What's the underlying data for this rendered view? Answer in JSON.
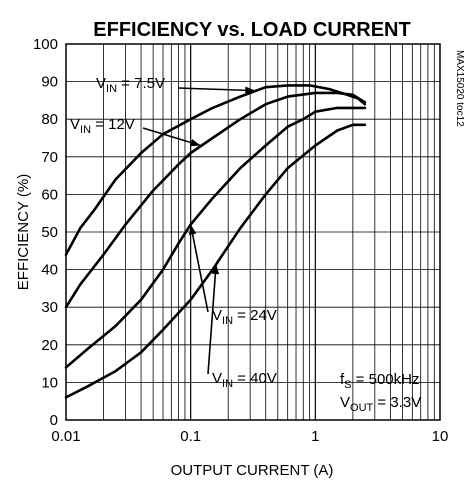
{
  "chart_data": {
    "type": "line",
    "title": "EFFICIENCY vs. LOAD CURRENT",
    "xlabel": "OUTPUT CURRENT (A)",
    "ylabel": "EFFICIENCY (%)",
    "x_scale": "log",
    "xlim": [
      0.01,
      10
    ],
    "ylim": [
      0,
      100
    ],
    "grid": true,
    "figure_code": "MAX15020 toc12",
    "x_ticks": [
      "0.01",
      "0.1",
      "1",
      "10"
    ],
    "y_ticks": [
      "0",
      "10",
      "20",
      "30",
      "40",
      "50",
      "60",
      "70",
      "80",
      "90",
      "100"
    ],
    "series": [
      {
        "name": "VIN = 7.5V",
        "label_main": "V",
        "label_sub": "IN",
        "label_rest": " = 7.5V",
        "x": [
          0.01,
          0.013,
          0.017,
          0.025,
          0.04,
          0.06,
          0.1,
          0.15,
          0.25,
          0.4,
          0.6,
          0.9,
          1.3,
          1.8,
          2.2,
          2.5
        ],
        "y": [
          44,
          51,
          56,
          64,
          71,
          76,
          80,
          83,
          86,
          88.5,
          89,
          89,
          88,
          86.5,
          85.5,
          84
        ]
      },
      {
        "name": "VIN = 12V",
        "label_main": "V",
        "label_sub": "IN",
        "label_rest": " = 12V",
        "x": [
          0.01,
          0.013,
          0.02,
          0.03,
          0.05,
          0.08,
          0.1,
          0.15,
          0.25,
          0.4,
          0.6,
          1.0,
          1.5,
          2.0,
          2.5
        ],
        "y": [
          30,
          36,
          44,
          52,
          61,
          68,
          71,
          75,
          80,
          84,
          86,
          87,
          87,
          86.5,
          84.5
        ]
      },
      {
        "name": "VIN = 24V",
        "label_main": "V",
        "label_sub": "IN",
        "label_rest": " = 24V",
        "x": [
          0.01,
          0.015,
          0.025,
          0.04,
          0.06,
          0.08,
          0.1,
          0.15,
          0.25,
          0.4,
          0.6,
          0.8,
          1.0,
          1.5,
          2.0,
          2.5
        ],
        "y": [
          14,
          19,
          25,
          32,
          40,
          47,
          52,
          59,
          67,
          73,
          78,
          80,
          82,
          83,
          83,
          83
        ]
      },
      {
        "name": "VIN = 40V",
        "label_main": "V",
        "label_sub": "IN",
        "label_rest": " = 40V",
        "x": [
          0.01,
          0.015,
          0.025,
          0.04,
          0.06,
          0.1,
          0.15,
          0.25,
          0.4,
          0.6,
          1.0,
          1.5,
          2.0,
          2.5
        ],
        "y": [
          6,
          9,
          13,
          18,
          24,
          32,
          40,
          51,
          60,
          67,
          73,
          77,
          78.5,
          78.5
        ]
      }
    ],
    "conditions": [
      {
        "main": "f",
        "sub": "S",
        "rest": " = 500kHz"
      },
      {
        "main": "V",
        "sub": "OUT",
        "rest": " = 3.3V"
      }
    ]
  }
}
